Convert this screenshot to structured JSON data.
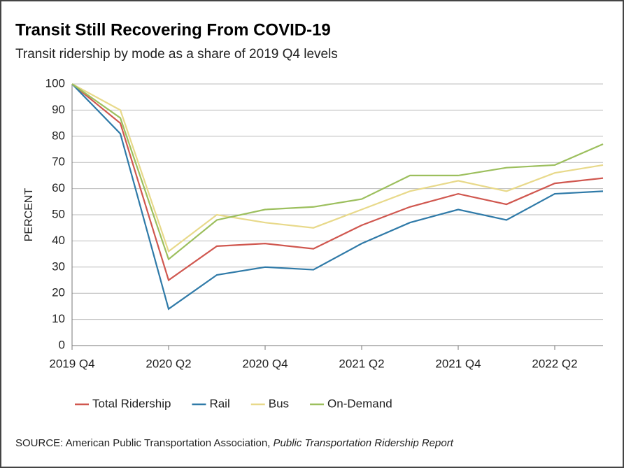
{
  "chart_data": {
    "type": "line",
    "title": "Transit Still Recovering From COVID-19",
    "subtitle": "Transit ridership by mode as a share of 2019 Q4 levels",
    "y_label": "PERCENT",
    "categories": [
      "2019 Q4",
      null,
      "2020 Q2",
      null,
      "2020 Q4",
      null,
      "2021 Q2",
      null,
      "2021 Q4",
      null,
      "2022 Q2",
      null
    ],
    "series": [
      {
        "name": "Total Ridership",
        "color": "#d0574f",
        "values": [
          100,
          85,
          25,
          38,
          39,
          37,
          46,
          53,
          58,
          54,
          62,
          64
        ]
      },
      {
        "name": "Rail",
        "color": "#2f7aa8",
        "values": [
          100,
          81,
          14,
          27,
          30,
          29,
          39,
          47,
          52,
          48,
          58,
          59
        ]
      },
      {
        "name": "Bus",
        "color": "#e8d98a",
        "values": [
          100,
          90,
          36,
          50,
          47,
          45,
          52,
          59,
          63,
          59,
          66,
          69
        ]
      },
      {
        "name": "On-Demand",
        "color": "#9cbf5d",
        "values": [
          100,
          87,
          33,
          48,
          52,
          53,
          56,
          65,
          65,
          68,
          69,
          77
        ]
      }
    ],
    "ylim": [
      0,
      100
    ],
    "yticks": [
      0,
      10,
      20,
      30,
      40,
      50,
      60,
      70,
      80,
      90,
      100
    ],
    "grid": true,
    "legend": "bottom",
    "source": {
      "text": "SOURCE: American Public Transportation Association,",
      "report": "Public Transportation Ridership Report"
    }
  }
}
